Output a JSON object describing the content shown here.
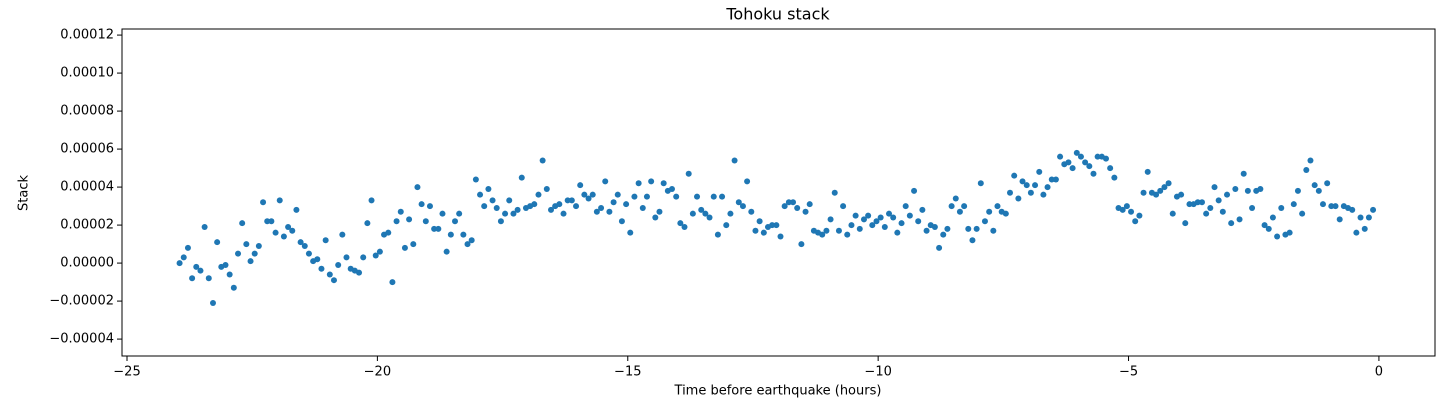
{
  "chart_data": {
    "type": "scatter",
    "title": "Tohoku stack",
    "xlabel": "Time before earthquake (hours)",
    "ylabel": "Stack",
    "color": "#1f77b4",
    "xlim": [
      -25.1,
      1.12
    ],
    "ylim": [
      -4.89e-05,
      0.0001232
    ],
    "xticks": [
      {
        "value": -25,
        "label": "−25"
      },
      {
        "value": -20,
        "label": "−20"
      },
      {
        "value": -15,
        "label": "−15"
      },
      {
        "value": -10,
        "label": "−10"
      },
      {
        "value": -5,
        "label": "−5"
      },
      0
    ],
    "yticks": [
      {
        "value": -4e-05,
        "label": "−0.00004"
      },
      {
        "value": -2e-05,
        "label": "−0.00002"
      },
      {
        "value": 0,
        "label": "0.00000"
      },
      {
        "value": 2e-05,
        "label": "0.00002"
      },
      {
        "value": 4e-05,
        "label": "0.00004"
      },
      {
        "value": 6e-05,
        "label": "0.00006"
      },
      {
        "value": 8e-05,
        "label": "0.00008"
      },
      {
        "value": 0.0001,
        "label": "0.00010"
      },
      {
        "value": 0.00012,
        "label": "0.00012"
      }
    ],
    "x": [
      -23.95,
      -23.867,
      -23.783,
      -23.7,
      -23.617,
      -23.533,
      -23.45,
      -23.367,
      -23.283,
      -23.2,
      -23.117,
      -23.033,
      -22.95,
      -22.867,
      -22.783,
      -22.7,
      -22.617,
      -22.533,
      -22.45,
      -22.367,
      -22.283,
      -22.2,
      -22.117,
      -22.033,
      -21.95,
      -21.867,
      -21.783,
      -21.7,
      -21.617,
      -21.533,
      -21.45,
      -21.367,
      -21.283,
      -21.2,
      -21.117,
      -21.033,
      -20.95,
      -20.867,
      -20.783,
      -20.7,
      -20.617,
      -20.533,
      -20.45,
      -20.367,
      -20.283,
      -20.2,
      -20.117,
      -20.033,
      -19.95,
      -19.867,
      -19.783,
      -19.7,
      -19.617,
      -19.533,
      -19.45,
      -19.367,
      -19.283,
      -19.2,
      -19.117,
      -19.033,
      -18.95,
      -18.867,
      -18.783,
      -18.7,
      -18.617,
      -18.533,
      -18.45,
      -18.367,
      -18.283,
      -18.2,
      -18.117,
      -18.033,
      -17.95,
      -17.867,
      -17.783,
      -17.7,
      -17.617,
      -17.533,
      -17.45,
      -17.367,
      -17.283,
      -17.2,
      -17.117,
      -17.033,
      -16.95,
      -16.867,
      -16.783,
      -16.7,
      -16.617,
      -16.533,
      -16.45,
      -16.367,
      -16.283,
      -16.2,
      -16.117,
      -16.033,
      -15.95,
      -15.867,
      -15.783,
      -15.7,
      -15.617,
      -15.533,
      -15.45,
      -15.367,
      -15.283,
      -15.2,
      -15.117,
      -15.033,
      -14.95,
      -14.867,
      -14.783,
      -14.7,
      -14.617,
      -14.533,
      -14.45,
      -14.367,
      -14.283,
      -14.2,
      -14.117,
      -14.033,
      -13.95,
      -13.867,
      -13.783,
      -13.7,
      -13.617,
      -13.533,
      -13.45,
      -13.367,
      -13.283,
      -13.2,
      -13.117,
      -13.033,
      -12.95,
      -12.867,
      -12.783,
      -12.7,
      -12.617,
      -12.533,
      -12.45,
      -12.367,
      -12.283,
      -12.2,
      -12.117,
      -12.033,
      -11.95,
      -11.867,
      -11.783,
      -11.7,
      -11.617,
      -11.533,
      -11.45,
      -11.367,
      -11.283,
      -11.2,
      -11.117,
      -11.033,
      -10.95,
      -10.867,
      -10.783,
      -10.7,
      -10.617,
      -10.533,
      -10.45,
      -10.367,
      -10.283,
      -10.2,
      -10.117,
      -10.033,
      -9.95,
      -9.867,
      -9.783,
      -9.7,
      -9.617,
      -9.533,
      -9.45,
      -9.367,
      -9.283,
      -9.2,
      -9.117,
      -9.033,
      -8.95,
      -8.867,
      -8.783,
      -8.7,
      -8.617,
      -8.533,
      -8.45,
      -8.367,
      -8.283,
      -8.2,
      -8.117,
      -8.033,
      -7.95,
      -7.867,
      -7.783,
      -7.7,
      -7.617,
      -7.533,
      -7.45,
      -7.367,
      -7.283,
      -7.2,
      -7.117,
      -7.033,
      -6.95,
      -6.867,
      -6.783,
      -6.7,
      -6.617,
      -6.533,
      -6.45,
      -6.367,
      -6.283,
      -6.2,
      -6.117,
      -6.033,
      -5.95,
      -5.867,
      -5.783,
      -5.7,
      -5.617,
      -5.533,
      -5.45,
      -5.367,
      -5.283,
      -5.2,
      -5.117,
      -5.033,
      -4.95,
      -4.867,
      -4.783,
      -4.7,
      -4.617,
      -4.533,
      -4.45,
      -4.367,
      -4.283,
      -4.2,
      -4.117,
      -4.033,
      -3.95,
      -3.867,
      -3.783,
      -3.7,
      -3.617,
      -3.533,
      -3.45,
      -3.367,
      -3.283,
      -3.2,
      -3.117,
      -3.033,
      -2.95,
      -2.867,
      -2.783,
      -2.7,
      -2.617,
      -2.533,
      -2.45,
      -2.367,
      -2.283,
      -2.2,
      -2.117,
      -2.033,
      -1.95,
      -1.867,
      -1.783,
      -1.7,
      -1.617,
      -1.533,
      -1.45,
      -1.367,
      -1.283,
      -1.2,
      -1.117,
      -1.033,
      -0.95,
      -0.867,
      -0.783,
      -0.7,
      -0.617,
      -0.533,
      -0.45,
      -0.367,
      -0.283,
      -0.2,
      -0.117
    ],
    "values": [
      0,
      3e-06,
      8e-06,
      -8e-06,
      -2e-06,
      -4e-06,
      1.9e-05,
      -8e-06,
      -2.1e-05,
      1.1e-05,
      -2e-06,
      -1e-06,
      -6e-06,
      -1.3e-05,
      5e-06,
      2.1e-05,
      1e-05,
      1e-06,
      5e-06,
      9e-06,
      3.2e-05,
      2.2e-05,
      2.2e-05,
      1.6e-05,
      3.3e-05,
      1.4e-05,
      1.9e-05,
      1.7e-05,
      2.8e-05,
      1.1e-05,
      9e-06,
      5e-06,
      1e-06,
      2e-06,
      -3e-06,
      1.2e-05,
      -6e-06,
      -9e-06,
      -1e-06,
      1.5e-05,
      3e-06,
      -3e-06,
      -4e-06,
      -5e-06,
      3e-06,
      2.1e-05,
      3.3e-05,
      4e-06,
      6e-06,
      1.5e-05,
      1.6e-05,
      -1e-05,
      2.2e-05,
      2.7e-05,
      8e-06,
      2.3e-05,
      1e-05,
      4e-05,
      3.1e-05,
      2.2e-05,
      3e-05,
      1.8e-05,
      1.8e-05,
      2.6e-05,
      6e-06,
      1.5e-05,
      2.2e-05,
      2.6e-05,
      1.5e-05,
      1e-05,
      1.2e-05,
      4.4e-05,
      3.6e-05,
      3e-05,
      3.9e-05,
      3.3e-05,
      2.9e-05,
      2.2e-05,
      2.6e-05,
      3.3e-05,
      2.6e-05,
      2.8e-05,
      4.5e-05,
      2.9e-05,
      3e-05,
      3.1e-05,
      3.6e-05,
      5.4e-05,
      3.9e-05,
      2.8e-05,
      3e-05,
      3.1e-05,
      2.6e-05,
      3.3e-05,
      3.3e-05,
      3e-05,
      4.1e-05,
      3.6e-05,
      3.4e-05,
      3.6e-05,
      2.7e-05,
      2.9e-05,
      4.3e-05,
      2.7e-05,
      3.2e-05,
      3.6e-05,
      2.2e-05,
      3.1e-05,
      1.6e-05,
      3.5e-05,
      4.2e-05,
      2.9e-05,
      3.5e-05,
      4.3e-05,
      2.4e-05,
      2.7e-05,
      4.2e-05,
      3.8e-05,
      3.9e-05,
      3.5e-05,
      2.1e-05,
      1.9e-05,
      4.7e-05,
      2.6e-05,
      3.5e-05,
      2.8e-05,
      2.6e-05,
      2.4e-05,
      3.5e-05,
      1.5e-05,
      3.5e-05,
      2e-05,
      2.6e-05,
      5.4e-05,
      3.2e-05,
      3e-05,
      4.3e-05,
      2.7e-05,
      1.7e-05,
      2.2e-05,
      1.6e-05,
      1.9e-05,
      2e-05,
      2e-05,
      1.4e-05,
      3e-05,
      3.2e-05,
      3.2e-05,
      2.9e-05,
      1e-05,
      2.7e-05,
      3.1e-05,
      1.7e-05,
      1.6e-05,
      1.5e-05,
      1.7e-05,
      2.3e-05,
      3.7e-05,
      1.7e-05,
      3e-05,
      1.5e-05,
      2e-05,
      2.5e-05,
      1.8e-05,
      2.3e-05,
      2.5e-05,
      2e-05,
      2.2e-05,
      2.4e-05,
      1.9e-05,
      2.6e-05,
      2.4e-05,
      1.6e-05,
      2.1e-05,
      3e-05,
      2.5e-05,
      3.8e-05,
      2.2e-05,
      2.8e-05,
      1.7e-05,
      2e-05,
      1.9e-05,
      8e-06,
      1.5e-05,
      1.8e-05,
      3e-05,
      3.4e-05,
      2.7e-05,
      3e-05,
      1.8e-05,
      1.2e-05,
      1.8e-05,
      4.2e-05,
      2.2e-05,
      2.7e-05,
      1.7e-05,
      3e-05,
      2.7e-05,
      2.6e-05,
      3.7e-05,
      4.6e-05,
      3.4e-05,
      4.3e-05,
      4.1e-05,
      3.7e-05,
      4.1e-05,
      4.8e-05,
      3.6e-05,
      4e-05,
      4.4e-05,
      4.4e-05,
      5.6e-05,
      5.2e-05,
      5.3e-05,
      5e-05,
      5.8e-05,
      5.6e-05,
      5.3e-05,
      5.1e-05,
      4.7e-05,
      5.6e-05,
      5.6e-05,
      5.5e-05,
      5e-05,
      4.5e-05,
      2.9e-05,
      2.8e-05,
      3e-05,
      2.7e-05,
      2.2e-05,
      2.5e-05,
      3.7e-05,
      4.8e-05,
      3.7e-05,
      3.6e-05,
      3.8e-05,
      4e-05,
      4.2e-05,
      2.6e-05,
      3.5e-05,
      3.6e-05,
      2.1e-05,
      3.1e-05,
      3.1e-05,
      3.2e-05,
      3.2e-05,
      2.6e-05,
      2.9e-05,
      4e-05,
      3.3e-05,
      2.7e-05,
      3.6e-05,
      2.1e-05,
      3.9e-05,
      2.3e-05,
      4.7e-05,
      3.8e-05,
      2.9e-05,
      3.8e-05,
      3.9e-05,
      2e-05,
      1.8e-05,
      2.4e-05,
      1.4e-05,
      2.9e-05,
      1.5e-05,
      1.6e-05,
      3.1e-05,
      3.8e-05,
      2.6e-05,
      4.9e-05,
      5.4e-05,
      4.1e-05,
      3.8e-05,
      3.1e-05,
      4.2e-05,
      3e-05,
      3e-05,
      2.3e-05,
      3e-05,
      2.9e-05,
      2.8e-05,
      1.6e-05,
      2.4e-05,
      1.8e-05,
      2.4e-05,
      2.8e-05
    ]
  }
}
